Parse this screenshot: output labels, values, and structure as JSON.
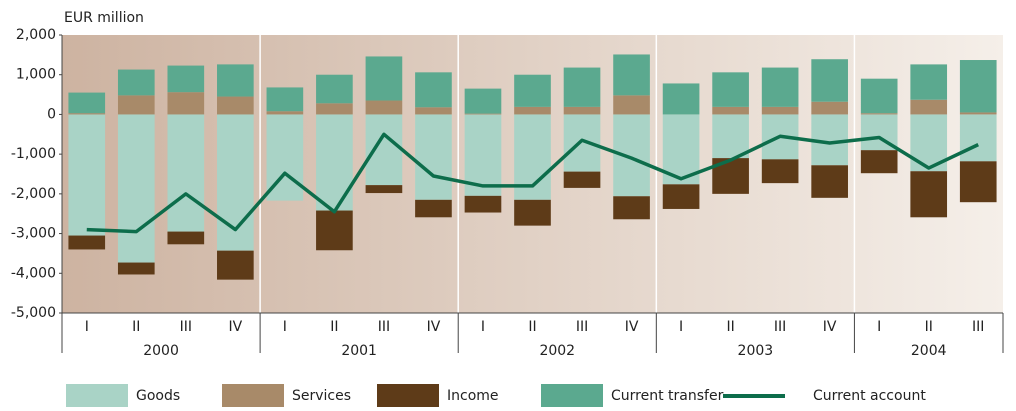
{
  "chart_data": {
    "type": "bar",
    "y_axis_label": "EUR million",
    "groups": [
      {
        "name": "2000",
        "categories": [
          "I",
          "II",
          "III",
          "IV"
        ]
      },
      {
        "name": "2001",
        "categories": [
          "I",
          "II",
          "III",
          "IV"
        ]
      },
      {
        "name": "2002",
        "categories": [
          "I",
          "II",
          "III",
          "IV"
        ]
      },
      {
        "name": "2003",
        "categories": [
          "I",
          "II",
          "III",
          "IV"
        ]
      },
      {
        "name": "2004",
        "categories": [
          "I",
          "II",
          "III"
        ]
      }
    ],
    "series": [
      {
        "name": "Goods",
        "color": "#a9d3c6",
        "values": [
          -3050,
          -3730,
          -2950,
          -3430,
          -2170,
          -2420,
          -1780,
          -2150,
          -2050,
          -2150,
          -1440,
          -2060,
          -1760,
          -1100,
          -1130,
          -1280,
          -900,
          -1430,
          -1180
        ]
      },
      {
        "name": "Services",
        "color": "#a88a69",
        "values": [
          30,
          480,
          560,
          450,
          80,
          280,
          350,
          180,
          20,
          190,
          190,
          480,
          0,
          190,
          190,
          320,
          30,
          370,
          50
        ]
      },
      {
        "name": "Income",
        "color": "#5e3b18",
        "values": [
          -350,
          -300,
          -320,
          -730,
          0,
          -1000,
          -200,
          -440,
          -420,
          -650,
          -410,
          -580,
          -620,
          -900,
          -600,
          -820,
          -580,
          -1160,
          -1030
        ]
      },
      {
        "name": "Current transfer",
        "color": "#5ba98f",
        "values": [
          520,
          650,
          670,
          810,
          600,
          720,
          1110,
          880,
          630,
          810,
          990,
          1030,
          780,
          870,
          990,
          1070,
          870,
          890,
          1320
        ]
      },
      {
        "name": "Current account",
        "type": "line",
        "color": "#0d6d4b",
        "values": [
          -2900,
          -2950,
          -2000,
          -2900,
          -1480,
          -2450,
          -500,
          -1550,
          -1800,
          -1800,
          -650,
          -1100,
          -1620,
          -1150,
          -550,
          -720,
          -580,
          -1350,
          -760
        ]
      }
    ],
    "ylim": [
      -5000,
      2000
    ],
    "yticks": [
      {
        "value": -5000,
        "label": "-5,000"
      },
      {
        "value": -4000,
        "label": "-4,000"
      },
      {
        "value": -3000,
        "label": "-3,000"
      },
      {
        "value": -2000,
        "label": "-2,000"
      },
      {
        "value": -1000,
        "label": "-1,000"
      },
      0,
      {
        "value": 1000,
        "label": "1,000"
      },
      {
        "value": 2000,
        "label": "2,000"
      }
    ]
  }
}
